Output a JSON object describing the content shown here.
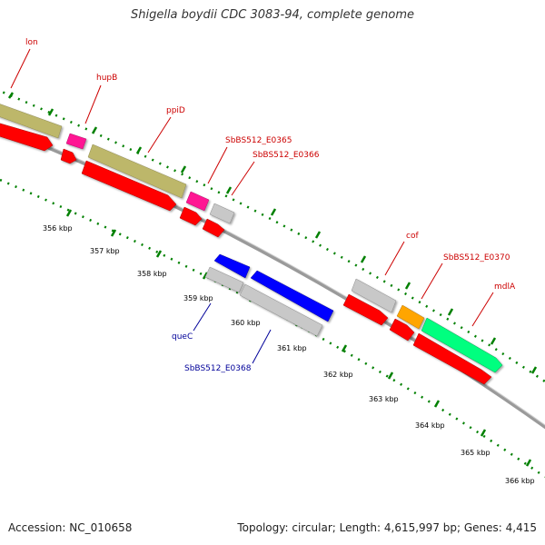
{
  "title": "Shigella boydii CDC 3083-94, complete genome",
  "footer": {
    "accession": "Accession: NC_010658",
    "topology": "Topology: circular; Length: 4,615,997 bp; Genes: 4,415"
  },
  "ruler_labels": [
    "356 kbp",
    "357 kbp",
    "358 kbp",
    "359 kbp",
    "360 kbp",
    "361 kbp",
    "362 kbp",
    "363 kbp",
    "364 kbp",
    "365 kbp",
    "366 kbp"
  ],
  "genes": [
    {
      "name": "lon",
      "strand": "forward",
      "color": "#ff0000"
    },
    {
      "name": "hupB",
      "strand": "forward",
      "color": "#ff1493"
    },
    {
      "name": "ppiD",
      "strand": "forward",
      "color": "#bdb76b"
    },
    {
      "name": "SbBS512_E0365",
      "strand": "forward",
      "color": "#ff1493"
    },
    {
      "name": "SbBS512_E0366",
      "strand": "forward",
      "color": "#c0c0c0"
    },
    {
      "name": "queC",
      "strand": "reverse",
      "color": "#0000ff"
    },
    {
      "name": "SbBS512_E0368",
      "strand": "reverse",
      "color": "#0000ff"
    },
    {
      "name": "cof",
      "strand": "forward",
      "color": "#c0c0c0"
    },
    {
      "name": "SbBS512_E0370",
      "strand": "forward",
      "color": "#ffa500"
    },
    {
      "name": "mdlA",
      "strand": "forward",
      "color": "#00ff7f"
    }
  ],
  "colors": {
    "forward_label": "#cc0000",
    "reverse_label": "#000099",
    "ruler_dots": "#008000",
    "backbone": "#999999",
    "cds_red": "#ff0000",
    "trna_blue": "#0000ff"
  }
}
